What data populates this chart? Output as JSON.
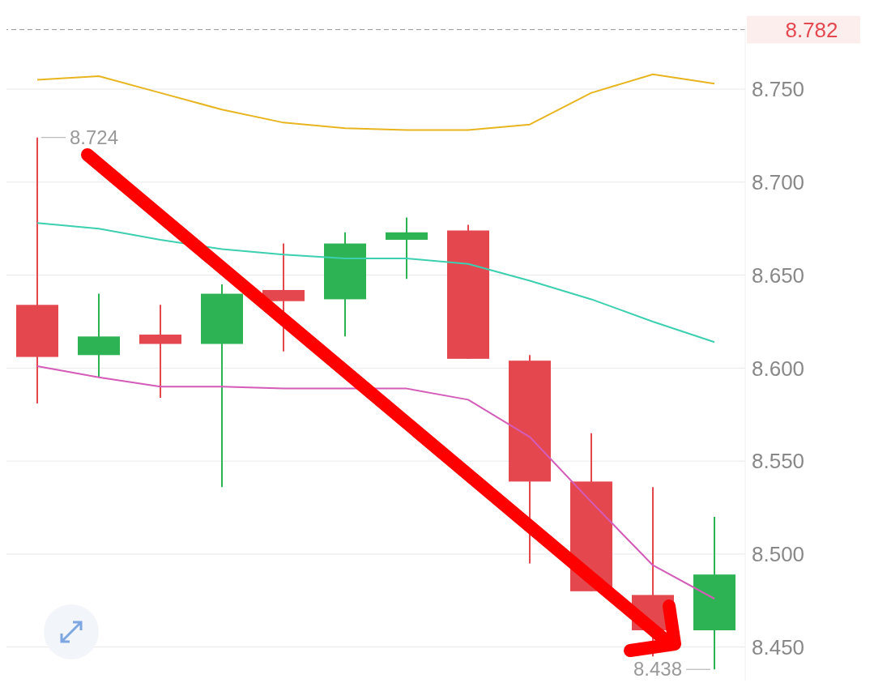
{
  "chart_data": {
    "type": "candlestick",
    "categories": [
      null,
      null,
      null,
      null,
      null,
      null,
      null,
      null,
      null,
      null,
      null,
      null
    ],
    "ohlc": [
      [
        8.634,
        8.724,
        8.581,
        8.606
      ],
      [
        8.607,
        8.64,
        8.595,
        8.617
      ],
      [
        8.618,
        8.634,
        8.584,
        8.613
      ],
      [
        8.613,
        8.645,
        8.536,
        8.64
      ],
      [
        8.642,
        8.667,
        8.609,
        8.636
      ],
      [
        8.637,
        8.673,
        8.617,
        8.667
      ],
      [
        8.669,
        8.681,
        8.648,
        8.673
      ],
      [
        8.674,
        8.677,
        8.605,
        8.605
      ],
      [
        8.604,
        8.607,
        8.495,
        8.539
      ],
      [
        8.539,
        8.565,
        8.48,
        8.48
      ],
      [
        8.478,
        8.536,
        8.445,
        8.459
      ],
      [
        8.459,
        8.52,
        8.438,
        8.489
      ]
    ],
    "colors": [
      "#e5474f",
      "#2eb354",
      "#e5474f",
      "#2eb354",
      "#e5474f",
      "#2eb354",
      "#2eb354",
      "#e5474f",
      "#e5474f",
      "#e5474f",
      "#e5474f",
      "#2eb354"
    ],
    "series": [
      {
        "type": "line",
        "color": "#e8b520",
        "values": [
          8.755,
          8.757,
          8.748,
          8.739,
          8.732,
          8.729,
          8.728,
          8.728,
          8.731,
          8.748,
          8.758,
          8.753
        ]
      },
      {
        "type": "line",
        "color": "#3ccfb0",
        "values": [
          8.678,
          8.675,
          8.669,
          8.664,
          8.661,
          8.659,
          8.659,
          8.656,
          8.647,
          8.637,
          8.625,
          8.614
        ]
      },
      {
        "type": "line",
        "color": "#d45cb8",
        "values": [
          8.601,
          8.595,
          8.59,
          8.59,
          8.589,
          8.589,
          8.589,
          8.583,
          8.563,
          8.528,
          8.494,
          8.476
        ]
      }
    ],
    "ylim": [
      8.432,
      8.784
    ],
    "yticks": [
      {
        "value": 8.45,
        "label": "8.450"
      },
      {
        "value": 8.5,
        "label": "8.500"
      },
      {
        "value": 8.55,
        "label": "8.550"
      },
      {
        "value": 8.6,
        "label": "8.600"
      },
      {
        "value": 8.65,
        "label": "8.650"
      },
      {
        "value": 8.7,
        "label": "8.700"
      },
      {
        "value": 8.75,
        "label": "8.750"
      }
    ],
    "ref_lines": [
      {
        "axis": "y",
        "value": 8.782,
        "label": "8.782",
        "color": "#999999",
        "line_style": "dashed"
      }
    ],
    "annotations": [
      "8.724",
      "8.438"
    ],
    "grid": "y",
    "legend": false,
    "tick_labels": "y"
  }
}
